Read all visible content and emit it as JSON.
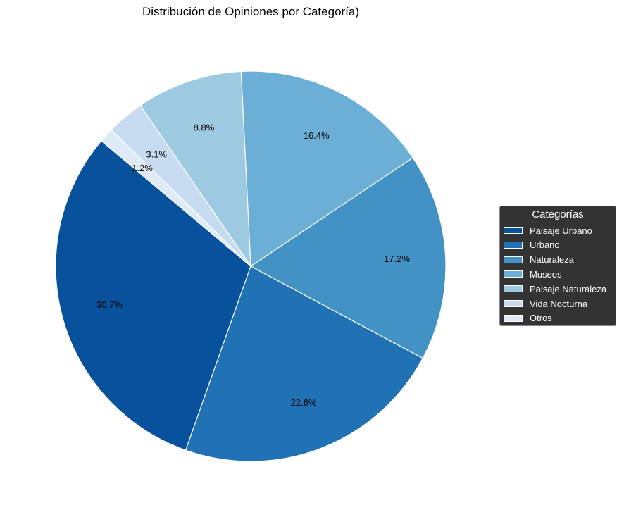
{
  "chart_data": {
    "type": "pie",
    "title": "Distribución de Opiniones por Categoría)",
    "legend_title": "Categorías",
    "legend_position": "right",
    "categories": [
      "Paisaje Urbano",
      "Urbano",
      "Naturaleza",
      "Museos",
      "Paisaje Naturaleza",
      "Vida Nocturna",
      "Otros"
    ],
    "values": [
      30.7,
      22.6,
      17.2,
      16.4,
      8.8,
      3.1,
      1.2
    ],
    "labels": [
      "30.7%",
      "22.6%",
      "17.2%",
      "16.4%",
      "8.8%",
      "3.1%",
      "1.2%"
    ],
    "colors": [
      "#08519c",
      "#2171b5",
      "#4292c6",
      "#6baed6",
      "#9ecae1",
      "#c6dbef",
      "#deebf7"
    ]
  }
}
